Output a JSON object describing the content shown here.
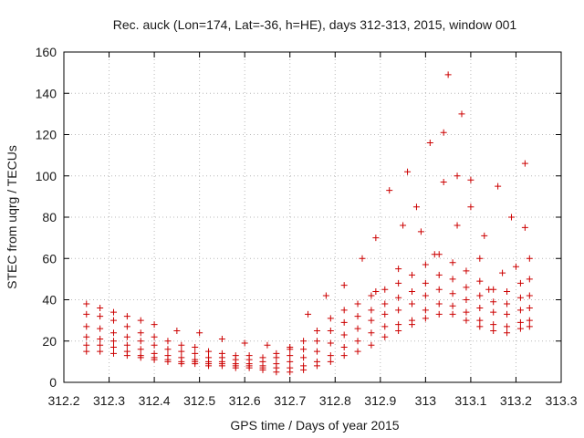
{
  "chart_data": {
    "type": "scatter",
    "title": "Rec. auck (Lon=174, Lat=-36, h=HE), days 312-313, 2015, window 001",
    "xlabel": "GPS time / Days of year 2015",
    "ylabel": "STEC from uqrg / TECUs",
    "xlim": [
      312.2,
      313.3
    ],
    "ylim": [
      0,
      160
    ],
    "xticks": [
      "312.2",
      "312.3",
      "312.4",
      "312.5",
      "312.6",
      "312.7",
      "312.8",
      "312.9",
      "313",
      "313.1",
      "313.2",
      "313.3"
    ],
    "yticks": [
      "0",
      "20",
      "40",
      "60",
      "80",
      "100",
      "120",
      "140",
      "160"
    ],
    "grid": true,
    "marker": "plus",
    "color": "#cc0000",
    "series": [
      {
        "name": "s1",
        "x": [
          312.25,
          312.28,
          312.31,
          312.34,
          312.37,
          312.4,
          312.43,
          312.46,
          312.49,
          312.52,
          312.55,
          312.58,
          312.61,
          312.64,
          312.67,
          312.7,
          312.73,
          312.76,
          312.79,
          312.82,
          312.85,
          312.88,
          312.91,
          312.94,
          312.97,
          313.0,
          313.03,
          313.06,
          313.09,
          313.12,
          313.15,
          313.18,
          313.21,
          313.23
        ],
        "y": [
          15,
          15,
          14,
          13,
          12,
          11,
          10,
          9,
          9,
          8,
          8,
          7,
          7,
          6,
          5,
          5,
          6,
          8,
          10,
          13,
          15,
          18,
          22,
          25,
          28,
          31,
          33,
          33,
          30,
          27,
          25,
          24,
          26,
          27
        ]
      },
      {
        "name": "s2",
        "x": [
          312.25,
          312.28,
          312.31,
          312.34,
          312.37,
          312.4,
          312.43,
          312.46,
          312.49,
          312.52,
          312.55,
          312.58,
          312.61,
          312.64,
          312.67,
          312.7,
          312.73,
          312.76,
          312.79,
          312.82,
          312.85,
          312.88,
          312.91,
          312.94,
          312.97,
          313.0,
          313.03,
          313.06,
          313.09,
          313.12,
          313.15,
          313.18,
          313.21,
          313.23
        ],
        "y": [
          18,
          18,
          17,
          15,
          13,
          12,
          11,
          10,
          10,
          9,
          9,
          8,
          8,
          7,
          7,
          7,
          8,
          10,
          13,
          17,
          20,
          24,
          27,
          28,
          30,
          35,
          38,
          37,
          34,
          30,
          28,
          27,
          29,
          30
        ]
      },
      {
        "name": "s3",
        "x": [
          312.25,
          312.28,
          312.31,
          312.34,
          312.37,
          312.4,
          312.43,
          312.46,
          312.49,
          312.52,
          312.55,
          312.58,
          312.61,
          312.64,
          312.67,
          312.7,
          312.73,
          312.76,
          312.79,
          312.82,
          312.85,
          312.88,
          312.91,
          312.94,
          312.97,
          313.0,
          313.03,
          313.06,
          313.09,
          313.12,
          313.15,
          313.18,
          313.21,
          313.23
        ],
        "y": [
          22,
          21,
          20,
          18,
          16,
          14,
          13,
          12,
          11,
          10,
          10,
          9,
          9,
          8,
          9,
          10,
          12,
          15,
          19,
          23,
          26,
          30,
          33,
          35,
          38,
          42,
          45,
          43,
          40,
          36,
          34,
          33,
          35,
          36
        ]
      },
      {
        "name": "s4",
        "x": [
          312.25,
          312.28,
          312.31,
          312.34,
          312.37,
          312.4,
          312.43,
          312.46,
          312.49,
          312.52,
          312.55,
          312.58,
          312.61,
          312.64,
          312.67,
          312.7,
          312.73,
          312.76,
          312.79,
          312.82,
          312.85,
          312.88,
          312.91,
          312.94,
          312.97,
          313.0,
          313.03,
          313.06,
          313.09,
          313.12,
          313.15,
          313.18,
          313.21,
          313.23
        ],
        "y": [
          27,
          26,
          24,
          22,
          20,
          18,
          16,
          15,
          14,
          12,
          12,
          11,
          11,
          10,
          12,
          13,
          16,
          20,
          25,
          29,
          32,
          35,
          38,
          41,
          44,
          48,
          52,
          50,
          46,
          42,
          39,
          38,
          41,
          42
        ]
      },
      {
        "name": "s5",
        "x": [
          312.25,
          312.28,
          312.31,
          312.34,
          312.37,
          312.4,
          312.43,
          312.46,
          312.49,
          312.52,
          312.55,
          312.58,
          312.61,
          312.64,
          312.67,
          312.7,
          312.73,
          312.76,
          312.79,
          312.82,
          312.85,
          312.88,
          312.91,
          312.94,
          312.97,
          313.0,
          313.03,
          313.06,
          313.09,
          313.12,
          313.15,
          313.18,
          313.21,
          313.23
        ],
        "y": [
          33,
          32,
          30,
          27,
          24,
          22,
          20,
          18,
          17,
          15,
          14,
          13,
          13,
          12,
          14,
          16,
          20,
          25,
          31,
          35,
          38,
          42,
          45,
          48,
          52,
          57,
          62,
          58,
          54,
          49,
          45,
          44,
          48,
          50
        ]
      },
      {
        "name": "s6",
        "x": [
          312.25,
          312.28,
          312.31,
          312.34,
          312.37,
          312.4,
          312.45,
          312.5,
          312.55,
          312.6,
          312.65,
          312.7,
          312.74,
          312.78,
          312.82,
          312.86,
          312.89,
          312.92,
          312.95,
          312.98,
          313.01,
          313.04,
          313.07,
          313.1,
          313.13,
          313.16,
          313.19,
          313.22
        ],
        "y": [
          38,
          36,
          34,
          32,
          30,
          28,
          25,
          24,
          21,
          19,
          18,
          17,
          33,
          42,
          47,
          60,
          70,
          93,
          76,
          85,
          116,
          121,
          100,
          98,
          71,
          95,
          80,
          106
        ]
      },
      {
        "name": "s7",
        "x": [
          312.89,
          312.94,
          312.96,
          312.99,
          313.02,
          313.04,
          313.05,
          313.07,
          313.08,
          313.1,
          313.12,
          313.14,
          313.17,
          313.2,
          313.22,
          313.23
        ],
        "y": [
          44,
          55,
          102,
          73,
          62,
          97,
          149,
          76,
          130,
          85,
          60,
          45,
          53,
          56,
          75,
          60
        ]
      }
    ]
  }
}
